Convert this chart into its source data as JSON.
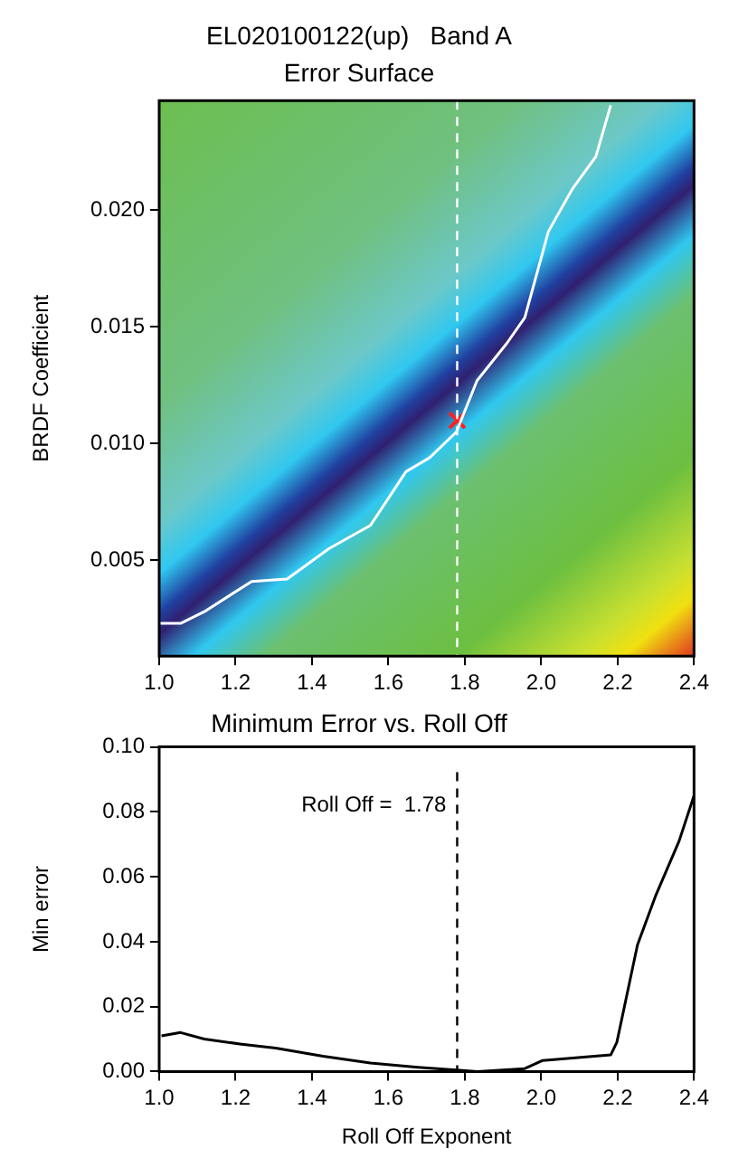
{
  "chart_data": [
    {
      "type": "line",
      "title": "EL020100122(up)   Band A",
      "subtitle": "Error Surface",
      "ylabel": "BRDF Coefficient",
      "series": [
        {
          "color": "#ffffff",
          "marker": "none",
          "line_style": "solid",
          "x": [
            1.0,
            1.056,
            1.118,
            1.242,
            1.335,
            1.444,
            1.553,
            1.646,
            1.708,
            1.778,
            1.832,
            1.91,
            1.957,
            2.019,
            2.081,
            2.143,
            2.182
          ],
          "values": [
            0.0023,
            0.0023,
            0.0028,
            0.0041,
            0.0042,
            0.0055,
            0.0065,
            0.0088,
            0.0094,
            0.0105,
            0.0127,
            0.0143,
            0.0154,
            0.0191,
            0.0209,
            0.0223,
            0.0245
          ]
        },
        {
          "type": "scatter",
          "color": "#ff2020",
          "marker": "cross",
          "x": [
            1.78
          ],
          "values": [
            0.011
          ]
        }
      ],
      "xlim": [
        1.0,
        2.4
      ],
      "ylim": [
        0.0009,
        0.0247
      ],
      "xticks": [
        {
          "value": 1.0,
          "label": "1.0"
        },
        {
          "value": 1.2,
          "label": "1.2"
        },
        {
          "value": 1.4,
          "label": "1.4"
        },
        {
          "value": 1.6,
          "label": "1.6"
        },
        {
          "value": 1.8,
          "label": "1.8"
        },
        {
          "value": 2.0,
          "label": "2.0"
        },
        {
          "value": 2.2,
          "label": "2.2"
        },
        {
          "value": 2.4,
          "label": "2.4"
        }
      ],
      "yticks": [
        0.005,
        {
          "value": 0.01,
          "label": "0.010"
        },
        0.015,
        {
          "value": 0.02,
          "label": "0.020"
        }
      ],
      "ref_lines": [
        {
          "axis": "x",
          "value": 1.78,
          "color": "#ffffff",
          "line_style": "dashed"
        }
      ]
    },
    {
      "type": "line",
      "title": "Minimum Error vs. Roll Off",
      "xlabel": "Roll Off Exponent",
      "ylabel": "Min error",
      "series": [
        {
          "color": "#000000",
          "marker": "none",
          "line_style": "solid",
          "x": [
            1.006,
            1.056,
            1.118,
            1.211,
            1.305,
            1.429,
            1.553,
            1.677,
            1.786,
            1.833,
            1.957,
            2.004,
            2.182,
            2.198,
            2.252,
            2.299,
            2.361,
            2.4
          ],
          "values": [
            0.011,
            0.012,
            0.01,
            0.0085,
            0.0072,
            0.0047,
            0.0026,
            0.0013,
            0.0004,
            0.0,
            0.0009,
            0.0034,
            0.0051,
            0.009,
            0.039,
            0.054,
            0.071,
            0.085
          ]
        }
      ],
      "xlim": [
        1.0,
        2.4
      ],
      "ylim": [
        0.0,
        0.1
      ],
      "xticks": [
        {
          "value": 1.0,
          "label": "1.0"
        },
        {
          "value": 1.2,
          "label": "1.2"
        },
        {
          "value": 1.4,
          "label": "1.4"
        },
        {
          "value": 1.6,
          "label": "1.6"
        },
        {
          "value": 1.8,
          "label": "1.8"
        },
        {
          "value": 2.0,
          "label": "2.0"
        },
        {
          "value": 2.2,
          "label": "2.2"
        },
        {
          "value": 2.4,
          "label": "2.4"
        }
      ],
      "yticks": [
        {
          "value": 0.0,
          "label": "0.00"
        },
        {
          "value": 0.02,
          "label": "0.02"
        },
        {
          "value": 0.04,
          "label": "0.04"
        },
        {
          "value": 0.06,
          "label": "0.06"
        },
        {
          "value": 0.08,
          "label": "0.08"
        },
        {
          "value": 0.1,
          "label": "0.10"
        }
      ],
      "ref_lines": [
        {
          "axis": "x",
          "value": 1.78,
          "color": "#000000",
          "line_style": "dashed",
          "label": "Roll Off =  1.78"
        }
      ]
    }
  ]
}
